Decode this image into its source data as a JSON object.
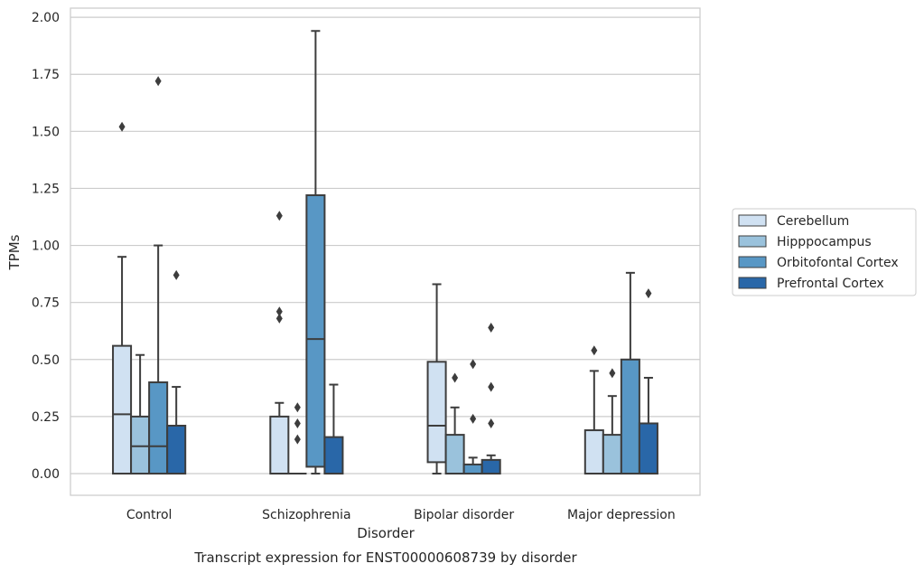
{
  "chart_data": {
    "type": "box",
    "caption": "Transcript expression for ENST00000608739 by disorder",
    "xlabel": "Disorder",
    "ylabel": "TPMs",
    "ylim": [
      -0.095,
      2.04
    ],
    "yticks": [
      "0.00",
      "0.25",
      "0.50",
      "0.75",
      "1.00",
      "1.25",
      "1.50",
      "1.75",
      "2.00"
    ],
    "grid": "horizontal",
    "legend_position": "right",
    "categories": [
      "Control",
      "Schizophrenia",
      "Bipolar disorder",
      "Major depression"
    ],
    "series": [
      {
        "name": "Cerebellum",
        "color": "#d0e1f2",
        "boxes": [
          {
            "whislo": 0.0,
            "q1": 0.0,
            "med": 0.26,
            "q3": 0.56,
            "whishi": 0.95,
            "fliers": [
              1.52
            ]
          },
          {
            "whislo": 0.0,
            "q1": 0.0,
            "med": 0.0,
            "q3": 0.25,
            "whishi": 0.31,
            "fliers": [
              0.68,
              0.71,
              1.13
            ]
          },
          {
            "whislo": 0.0,
            "q1": 0.05,
            "med": 0.21,
            "q3": 0.49,
            "whishi": 0.83,
            "fliers": []
          },
          {
            "whislo": 0.0,
            "q1": 0.0,
            "med": 0.0,
            "q3": 0.19,
            "whishi": 0.45,
            "fliers": [
              0.54
            ]
          }
        ]
      },
      {
        "name": "Hipppocampus",
        "color": "#9ac2dc",
        "boxes": [
          {
            "whislo": 0.0,
            "q1": 0.0,
            "med": 0.12,
            "q3": 0.25,
            "whishi": 0.52,
            "fliers": []
          },
          {
            "whislo": 0.0,
            "q1": 0.0,
            "med": 0.0,
            "q3": 0.0,
            "whishi": 0.0,
            "fliers": [
              0.15,
              0.22,
              0.29
            ]
          },
          {
            "whislo": 0.0,
            "q1": 0.0,
            "med": 0.0,
            "q3": 0.17,
            "whishi": 0.29,
            "fliers": [
              0.42
            ]
          },
          {
            "whislo": 0.0,
            "q1": 0.0,
            "med": 0.0,
            "q3": 0.17,
            "whishi": 0.34,
            "fliers": [
              0.44
            ]
          }
        ]
      },
      {
        "name": "Orbitofontal Cortex",
        "color": "#5897c5",
        "boxes": [
          {
            "whislo": 0.0,
            "q1": 0.0,
            "med": 0.12,
            "q3": 0.4,
            "whishi": 1.0,
            "fliers": [
              1.72
            ]
          },
          {
            "whislo": 0.0,
            "q1": 0.03,
            "med": 0.59,
            "q3": 1.22,
            "whishi": 1.94,
            "fliers": []
          },
          {
            "whislo": 0.0,
            "q1": 0.0,
            "med": 0.0,
            "q3": 0.04,
            "whishi": 0.07,
            "fliers": [
              0.24,
              0.48
            ]
          },
          {
            "whislo": 0.0,
            "q1": 0.0,
            "med": 0.0,
            "q3": 0.5,
            "whishi": 0.88,
            "fliers": []
          }
        ]
      },
      {
        "name": "Prefrontal Cortex",
        "color": "#2967a8",
        "boxes": [
          {
            "whislo": 0.0,
            "q1": 0.0,
            "med": 0.0,
            "q3": 0.21,
            "whishi": 0.38,
            "fliers": [
              0.87
            ]
          },
          {
            "whislo": 0.0,
            "q1": 0.0,
            "med": 0.0,
            "q3": 0.16,
            "whishi": 0.39,
            "fliers": []
          },
          {
            "whislo": 0.0,
            "q1": 0.0,
            "med": 0.0,
            "q3": 0.06,
            "whishi": 0.08,
            "fliers": [
              0.22,
              0.38,
              0.64
            ]
          },
          {
            "whislo": 0.0,
            "q1": 0.0,
            "med": 0.0,
            "q3": 0.22,
            "whishi": 0.42,
            "fliers": [
              0.79
            ]
          }
        ]
      }
    ]
  }
}
